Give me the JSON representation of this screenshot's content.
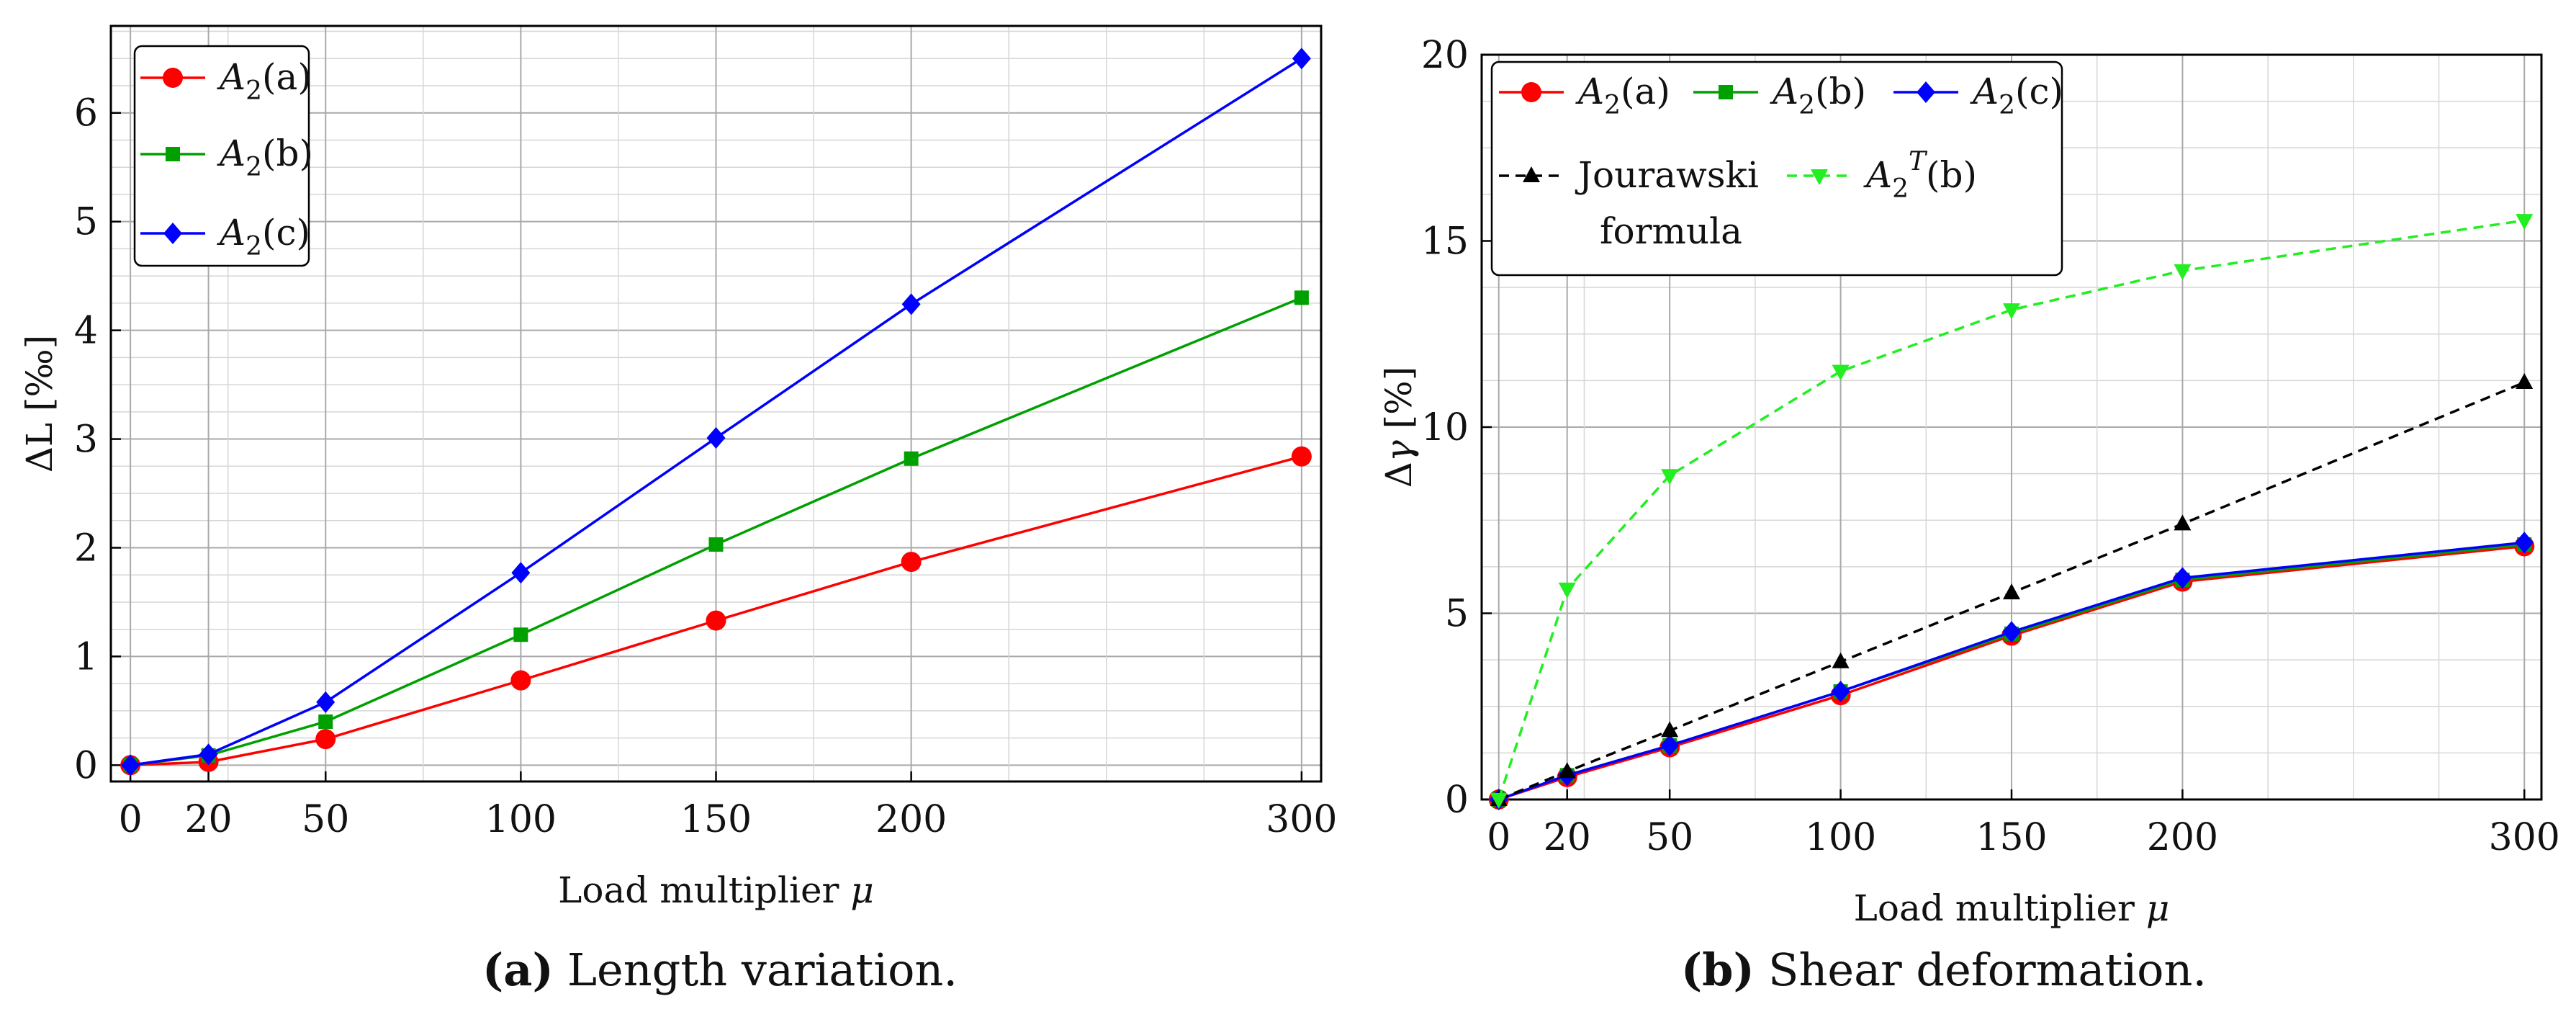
{
  "chart_data": [
    {
      "type": "line",
      "title": "",
      "caption_tag": "(a)",
      "caption": "Length variation.",
      "xlabel": "Load multiplier μ",
      "ylabel": "ΔL [‰]",
      "xlim": [
        -5,
        305
      ],
      "ylim": [
        -0.15,
        6.8
      ],
      "xticks": [
        0,
        20,
        50,
        100,
        150,
        200,
        300
      ],
      "yticks": [
        0,
        1,
        2,
        3,
        4,
        5,
        6
      ],
      "grid": true,
      "legend_position": "top-left",
      "x": [
        0,
        20,
        50,
        100,
        150,
        200,
        300
      ],
      "series": [
        {
          "name": "A2(a)",
          "base": "A",
          "sub": "2",
          "suffix": "(a)",
          "color": "#ff0000",
          "marker": "circle",
          "dash": "solid",
          "values": [
            0.0,
            0.03,
            0.24,
            0.78,
            1.33,
            1.87,
            2.84
          ]
        },
        {
          "name": "A2(b)",
          "base": "A",
          "sub": "2",
          "suffix": "(b)",
          "color": "#00a000",
          "marker": "square",
          "dash": "solid",
          "values": [
            0.0,
            0.09,
            0.4,
            1.2,
            2.03,
            2.82,
            4.3
          ]
        },
        {
          "name": "A2(c)",
          "base": "A",
          "sub": "2",
          "suffix": "(c)",
          "color": "#0000ff",
          "marker": "diamond",
          "dash": "solid",
          "values": [
            0.0,
            0.1,
            0.58,
            1.77,
            3.01,
            4.24,
            6.5
          ]
        }
      ]
    },
    {
      "type": "line",
      "title": "",
      "caption_tag": "(b)",
      "caption": "Shear deformation.",
      "xlabel": "Load multiplier μ",
      "ylabel": "Δγ [%]",
      "xlim": [
        -5,
        305
      ],
      "ylim": [
        0,
        20
      ],
      "xticks": [
        0,
        20,
        50,
        100,
        150,
        200,
        300
      ],
      "yticks": [
        0,
        5,
        10,
        15,
        20
      ],
      "grid": true,
      "legend_position": "top-left",
      "x": [
        0,
        20,
        50,
        100,
        150,
        200,
        300
      ],
      "series": [
        {
          "name": "A2(a)",
          "base": "A",
          "sub": "2",
          "suffix": "(a)",
          "color": "#ff0000",
          "marker": "circle",
          "dash": "solid",
          "values": [
            0.0,
            0.6,
            1.4,
            2.8,
            4.4,
            5.85,
            6.8
          ]
        },
        {
          "name": "A2(b)",
          "base": "A",
          "sub": "2",
          "suffix": "(b)",
          "color": "#00a000",
          "marker": "square",
          "dash": "solid",
          "values": [
            0.0,
            0.65,
            1.45,
            2.9,
            4.45,
            5.9,
            6.85
          ]
        },
        {
          "name": "A2(c)",
          "base": "A",
          "sub": "2",
          "suffix": "(c)",
          "color": "#0000ff",
          "marker": "diamond",
          "dash": "solid",
          "values": [
            0.0,
            0.65,
            1.45,
            2.9,
            4.5,
            5.95,
            6.9
          ]
        },
        {
          "name": "Jourawski formula",
          "label_lines": [
            "Jourawski",
            "formula"
          ],
          "color": "#000000",
          "marker": "triangle-up",
          "dash": "dashed",
          "values": [
            0.0,
            0.75,
            1.85,
            3.7,
            5.55,
            7.4,
            11.2
          ]
        },
        {
          "name": "A2T(b)",
          "base": "A",
          "sub": "2",
          "sup": "T",
          "suffix": "(b)",
          "color": "#22ee22",
          "marker": "triangle-down",
          "dash": "dashed",
          "values": [
            0.0,
            5.65,
            8.7,
            11.5,
            13.15,
            14.2,
            15.55
          ]
        }
      ]
    }
  ]
}
